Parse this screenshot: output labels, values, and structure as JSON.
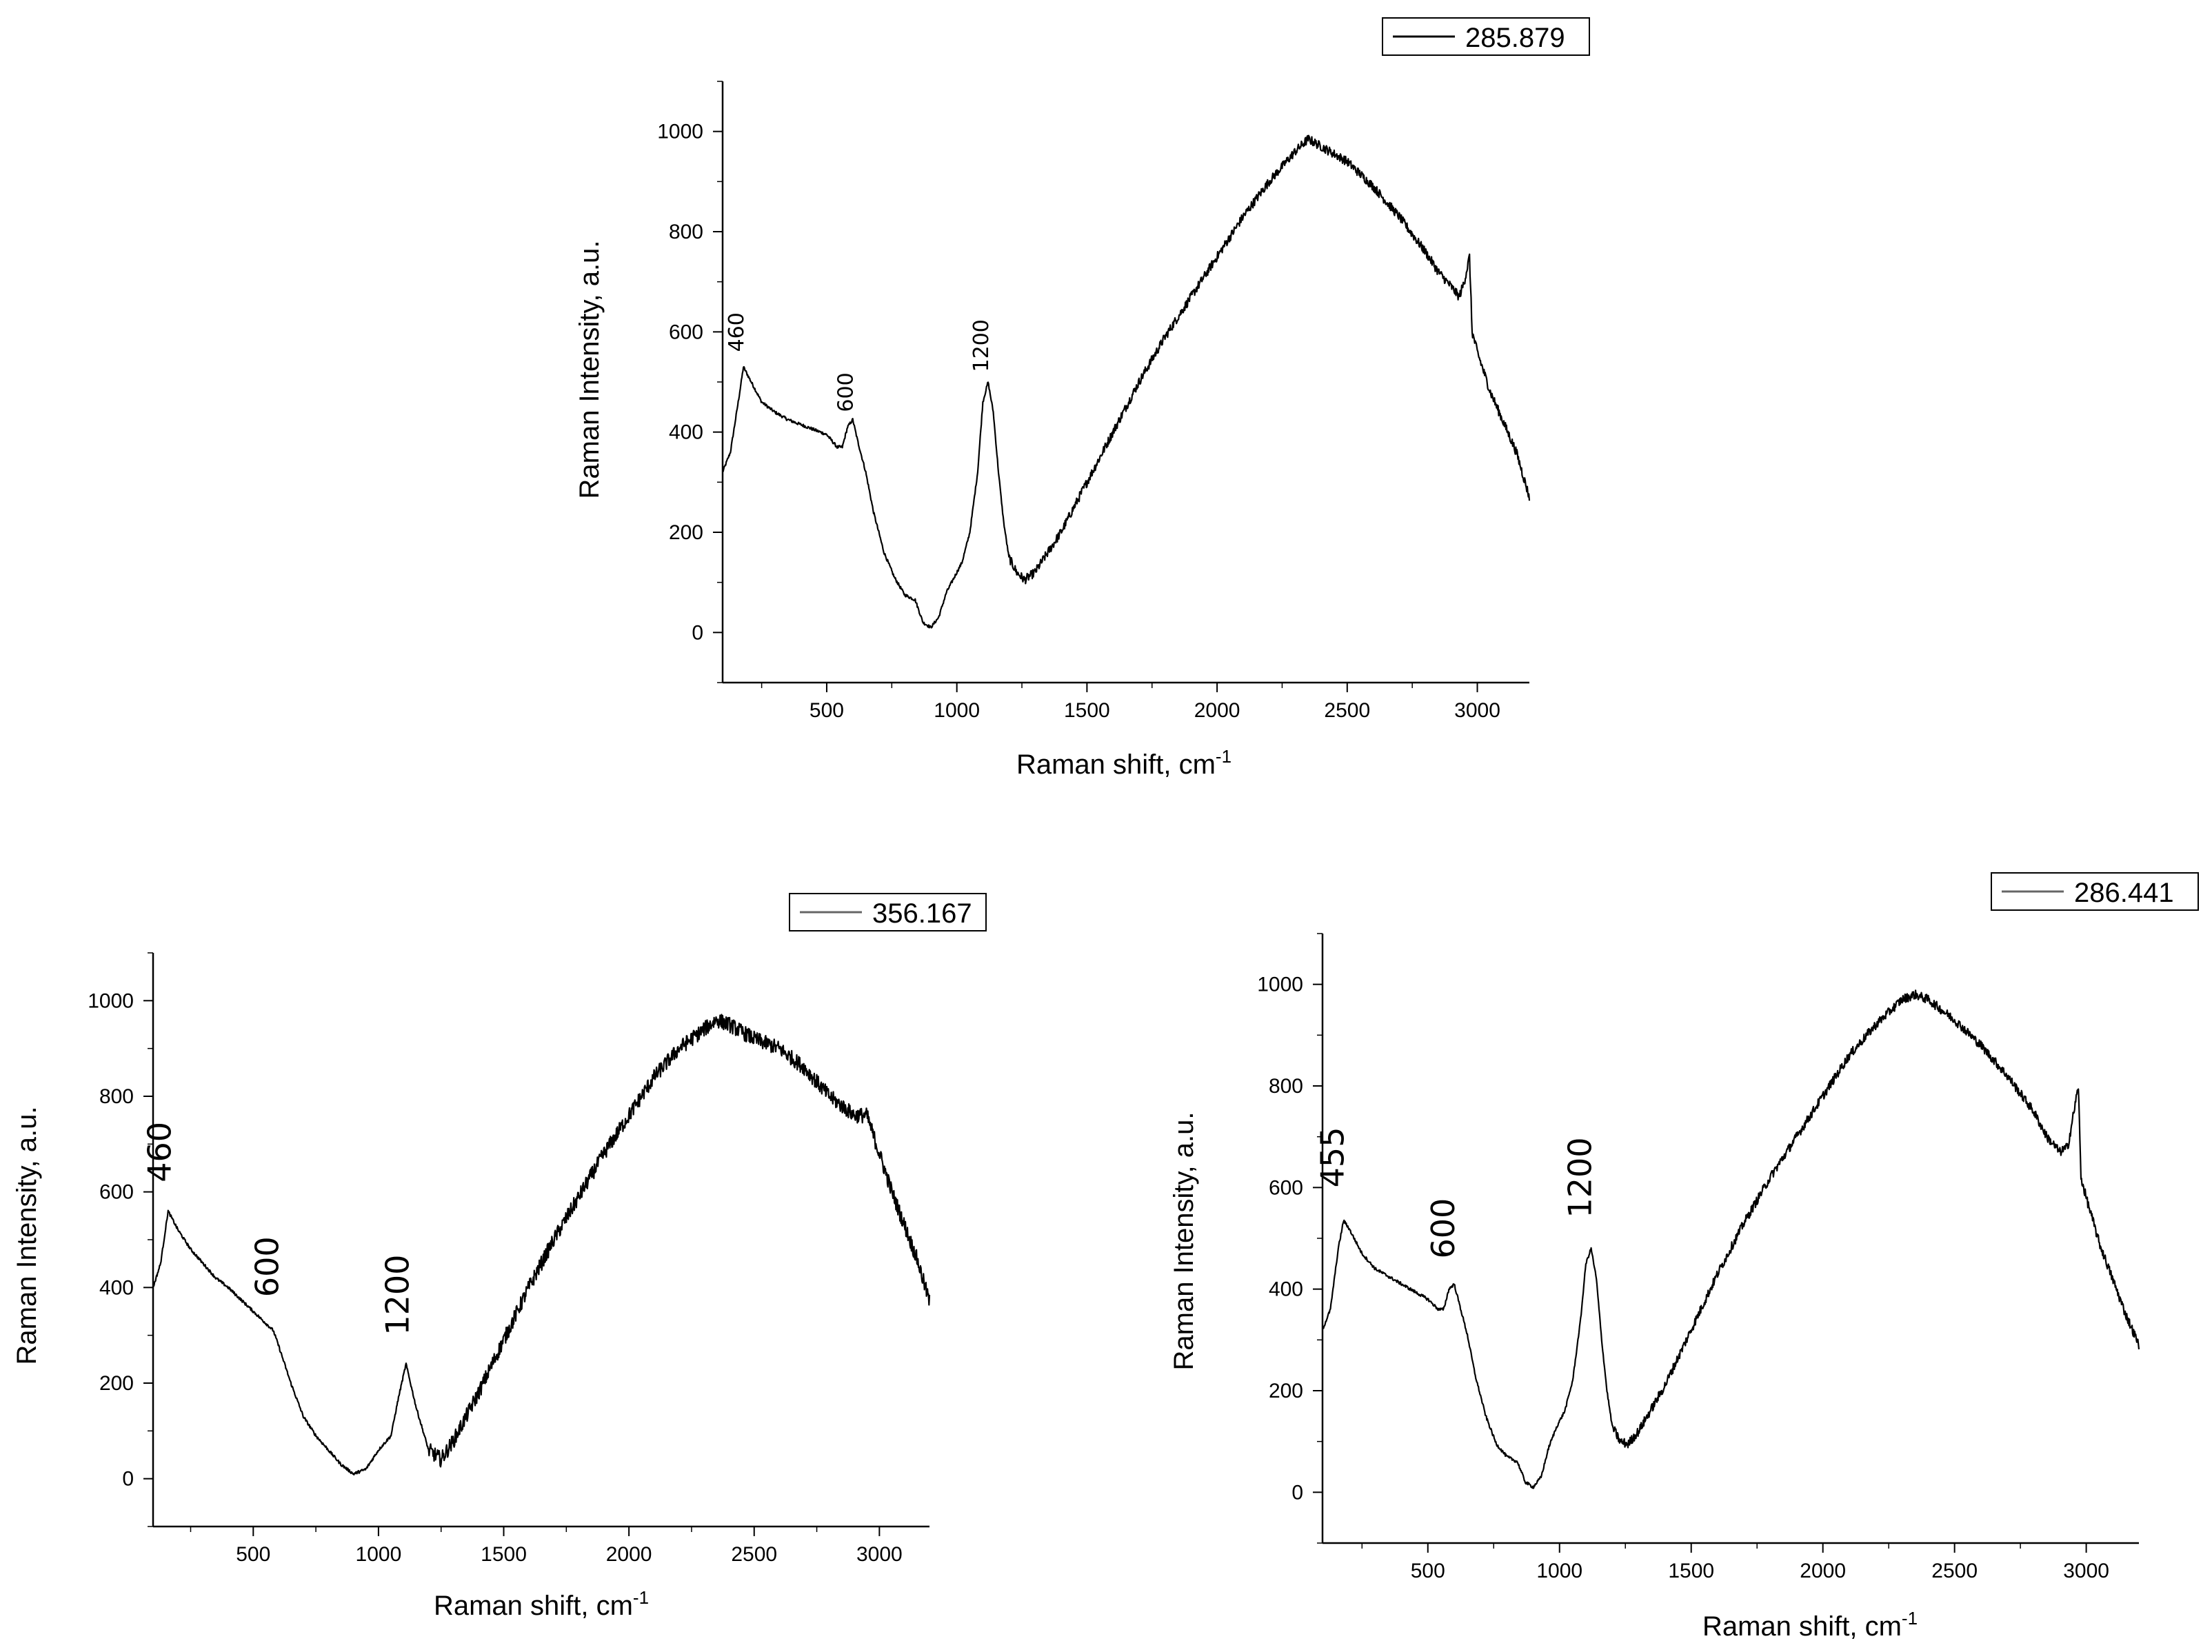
{
  "chart_data": [
    {
      "id": "top",
      "type": "line",
      "legend": "285.879",
      "xlabel": "Raman shift, cm",
      "xlabel_sup": "-1",
      "ylabel": "Raman Intensity, a.u.",
      "xlim": [
        100,
        3200
      ],
      "ylim": [
        -100,
        1100
      ],
      "xticks": [
        500,
        1000,
        1500,
        2000,
        2500,
        3000
      ],
      "yticks": [
        0,
        200,
        400,
        600,
        800,
        1000
      ],
      "series": [
        {
          "name": "285.879",
          "x": [
            100,
            130,
            160,
            180,
            200,
            250,
            300,
            350,
            400,
            450,
            500,
            540,
            560,
            580,
            600,
            620,
            650,
            680,
            720,
            760,
            800,
            840,
            870,
            900,
            930,
            960,
            990,
            1020,
            1050,
            1080,
            1100,
            1120,
            1140,
            1160,
            1180,
            1200,
            1230,
            1260,
            1300,
            1400,
            1500,
            1600,
            1700,
            1800,
            1900,
            2000,
            2100,
            2200,
            2300,
            2350,
            2400,
            2500,
            2600,
            2700,
            2800,
            2850,
            2900,
            2930,
            2950,
            2970,
            2980,
            3000,
            3050,
            3100,
            3150,
            3200
          ],
          "y": [
            320,
            360,
            460,
            530,
            510,
            460,
            440,
            425,
            415,
            405,
            395,
            370,
            370,
            410,
            425,
            380,
            320,
            240,
            160,
            110,
            75,
            65,
            20,
            10,
            30,
            80,
            110,
            140,
            200,
            320,
            460,
            500,
            440,
            320,
            220,
            150,
            120,
            105,
            120,
            200,
            300,
            400,
            500,
            590,
            670,
            750,
            830,
            900,
            960,
            985,
            970,
            940,
            890,
            830,
            760,
            720,
            690,
            670,
            700,
            750,
            600,
            560,
            480,
            420,
            360,
            270
          ]
        }
      ],
      "annotations": [
        {
          "text": "460",
          "x": 180,
          "y": 560
        },
        {
          "text": "600",
          "x": 600,
          "y": 440
        },
        {
          "text": "1200",
          "x": 1120,
          "y": 520
        }
      ]
    },
    {
      "id": "bottom-left",
      "type": "line",
      "legend": "356.167",
      "xlabel": "Raman shift, cm",
      "xlabel_sup": "-1",
      "ylabel": "Raman Intensity, a.u.",
      "xlim": [
        100,
        3200
      ],
      "ylim": [
        -100,
        1100
      ],
      "xticks": [
        500,
        1000,
        1500,
        2000,
        2500,
        3000
      ],
      "yticks": [
        0,
        200,
        400,
        600,
        800,
        1000
      ],
      "series": [
        {
          "name": "356.167",
          "x": [
            100,
            130,
            160,
            200,
            250,
            300,
            350,
            400,
            450,
            500,
            550,
            580,
            600,
            650,
            700,
            750,
            800,
            850,
            900,
            950,
            1000,
            1050,
            1080,
            1110,
            1150,
            1200,
            1250,
            1300,
            1400,
            1500,
            1600,
            1700,
            1800,
            1900,
            2000,
            2100,
            2200,
            2300,
            2350,
            2400,
            2500,
            2600,
            2700,
            2800,
            2900,
            2950,
            3000,
            3050,
            3100,
            3150,
            3200
          ],
          "y": [
            400,
            450,
            560,
            520,
            480,
            450,
            420,
            400,
            375,
            350,
            325,
            310,
            280,
            200,
            130,
            90,
            60,
            30,
            10,
            20,
            60,
            90,
            170,
            240,
            150,
            60,
            40,
            80,
            180,
            290,
            400,
            500,
            590,
            680,
            760,
            840,
            900,
            940,
            960,
            950,
            920,
            900,
            860,
            800,
            760,
            760,
            680,
            600,
            530,
            460,
            370
          ]
        }
      ],
      "annotations": [
        {
          "text": "460",
          "x": 170,
          "y": 620
        },
        {
          "text": "600",
          "x": 600,
          "y": 380
        },
        {
          "text": "1200",
          "x": 1120,
          "y": 300
        }
      ]
    },
    {
      "id": "bottom-right",
      "type": "line",
      "legend": "286.441",
      "xlabel": "Raman shift, cm",
      "xlabel_sup": "-1",
      "ylabel": "Raman Intensity, a.u.",
      "xlim": [
        100,
        3200
      ],
      "ylim": [
        -100,
        1100
      ],
      "xticks": [
        500,
        1000,
        1500,
        2000,
        2500,
        3000
      ],
      "yticks": [
        0,
        200,
        400,
        600,
        800,
        1000
      ],
      "series": [
        {
          "name": "286.441",
          "x": [
            100,
            130,
            160,
            180,
            200,
            250,
            300,
            350,
            400,
            450,
            500,
            540,
            560,
            580,
            600,
            620,
            650,
            680,
            720,
            760,
            800,
            840,
            870,
            900,
            930,
            960,
            990,
            1020,
            1050,
            1080,
            1100,
            1120,
            1140,
            1160,
            1180,
            1200,
            1230,
            1260,
            1300,
            1400,
            1500,
            1600,
            1700,
            1800,
            1900,
            2000,
            2100,
            2200,
            2300,
            2350,
            2400,
            2500,
            2600,
            2700,
            2800,
            2850,
            2900,
            2930,
            2950,
            2970,
            2980,
            3000,
            3050,
            3100,
            3150,
            3200
          ],
          "y": [
            320,
            360,
            480,
            535,
            520,
            470,
            440,
            425,
            410,
            395,
            380,
            360,
            360,
            400,
            410,
            370,
            310,
            230,
            150,
            95,
            70,
            60,
            20,
            10,
            30,
            90,
            130,
            160,
            220,
            340,
            450,
            480,
            420,
            300,
            200,
            130,
            100,
            95,
            120,
            210,
            320,
            430,
            530,
            620,
            700,
            780,
            860,
            920,
            970,
            980,
            970,
            930,
            880,
            820,
            750,
            700,
            670,
            680,
            740,
            800,
            620,
            580,
            490,
            420,
            350,
            290
          ]
        }
      ],
      "annotations": [
        {
          "text": "455",
          "x": 180,
          "y": 600
        },
        {
          "text": "600",
          "x": 600,
          "y": 460
        },
        {
          "text": "1200",
          "x": 1120,
          "y": 540
        }
      ]
    }
  ]
}
